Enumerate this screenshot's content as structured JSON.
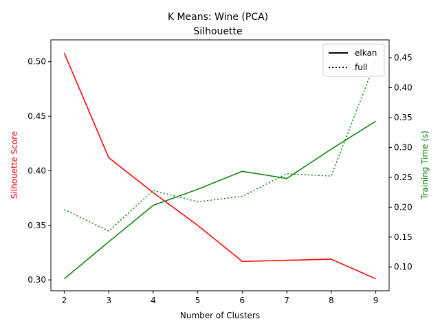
{
  "chart_data": {
    "type": "line",
    "title": "K Means: Wine (PCA)",
    "subtitle": "Silhouette",
    "xlabel": "Number of Clusters",
    "ylabel_left": "Silhouette Score",
    "ylabel_right": "Training Time (s)",
    "xlim": [
      1.7,
      9.3
    ],
    "ylim_left": [
      0.29,
      0.52
    ],
    "ylim_right": [
      0.06,
      0.48
    ],
    "x_ticks": [
      2,
      3,
      4,
      5,
      6,
      7,
      8,
      9
    ],
    "y_left_ticks": [
      0.3,
      0.35,
      0.4,
      0.45,
      0.5
    ],
    "y_right_ticks": [
      0.1,
      0.15,
      0.2,
      0.25,
      0.3,
      0.35,
      0.4,
      0.45
    ],
    "grid": false,
    "legend": {
      "placement": "top-right",
      "entries": [
        {
          "label": "elkan",
          "style": "solid"
        },
        {
          "label": "full",
          "style": "dotted"
        }
      ]
    },
    "colors": {
      "left_axis": "#ff0000",
      "right_axis": "#008000",
      "legend_line": "#000000"
    },
    "x": [
      2,
      3,
      4,
      5,
      6,
      7,
      8,
      9
    ],
    "series": [
      {
        "name": "elkan",
        "axis": "left",
        "color": "#ff0000",
        "style": "solid",
        "values": [
          0.508,
          0.412,
          0.38,
          0.35,
          0.317,
          0.318,
          0.319,
          0.301
        ]
      },
      {
        "name": "full",
        "axis": "left",
        "color": "#ff0000",
        "style": "dotted",
        "values": [
          0.508,
          0.412,
          0.38,
          0.35,
          0.317,
          0.318,
          0.319,
          0.301
        ]
      },
      {
        "name": "elkan",
        "axis": "right",
        "color": "#008000",
        "style": "solid",
        "values": [
          0.08,
          0.142,
          0.203,
          0.23,
          0.26,
          0.248,
          0.297,
          0.344
        ]
      },
      {
        "name": "full",
        "axis": "right",
        "color": "#008000",
        "style": "dotted",
        "values": [
          0.196,
          0.16,
          0.228,
          0.209,
          0.218,
          0.256,
          0.252,
          0.445
        ]
      }
    ]
  }
}
